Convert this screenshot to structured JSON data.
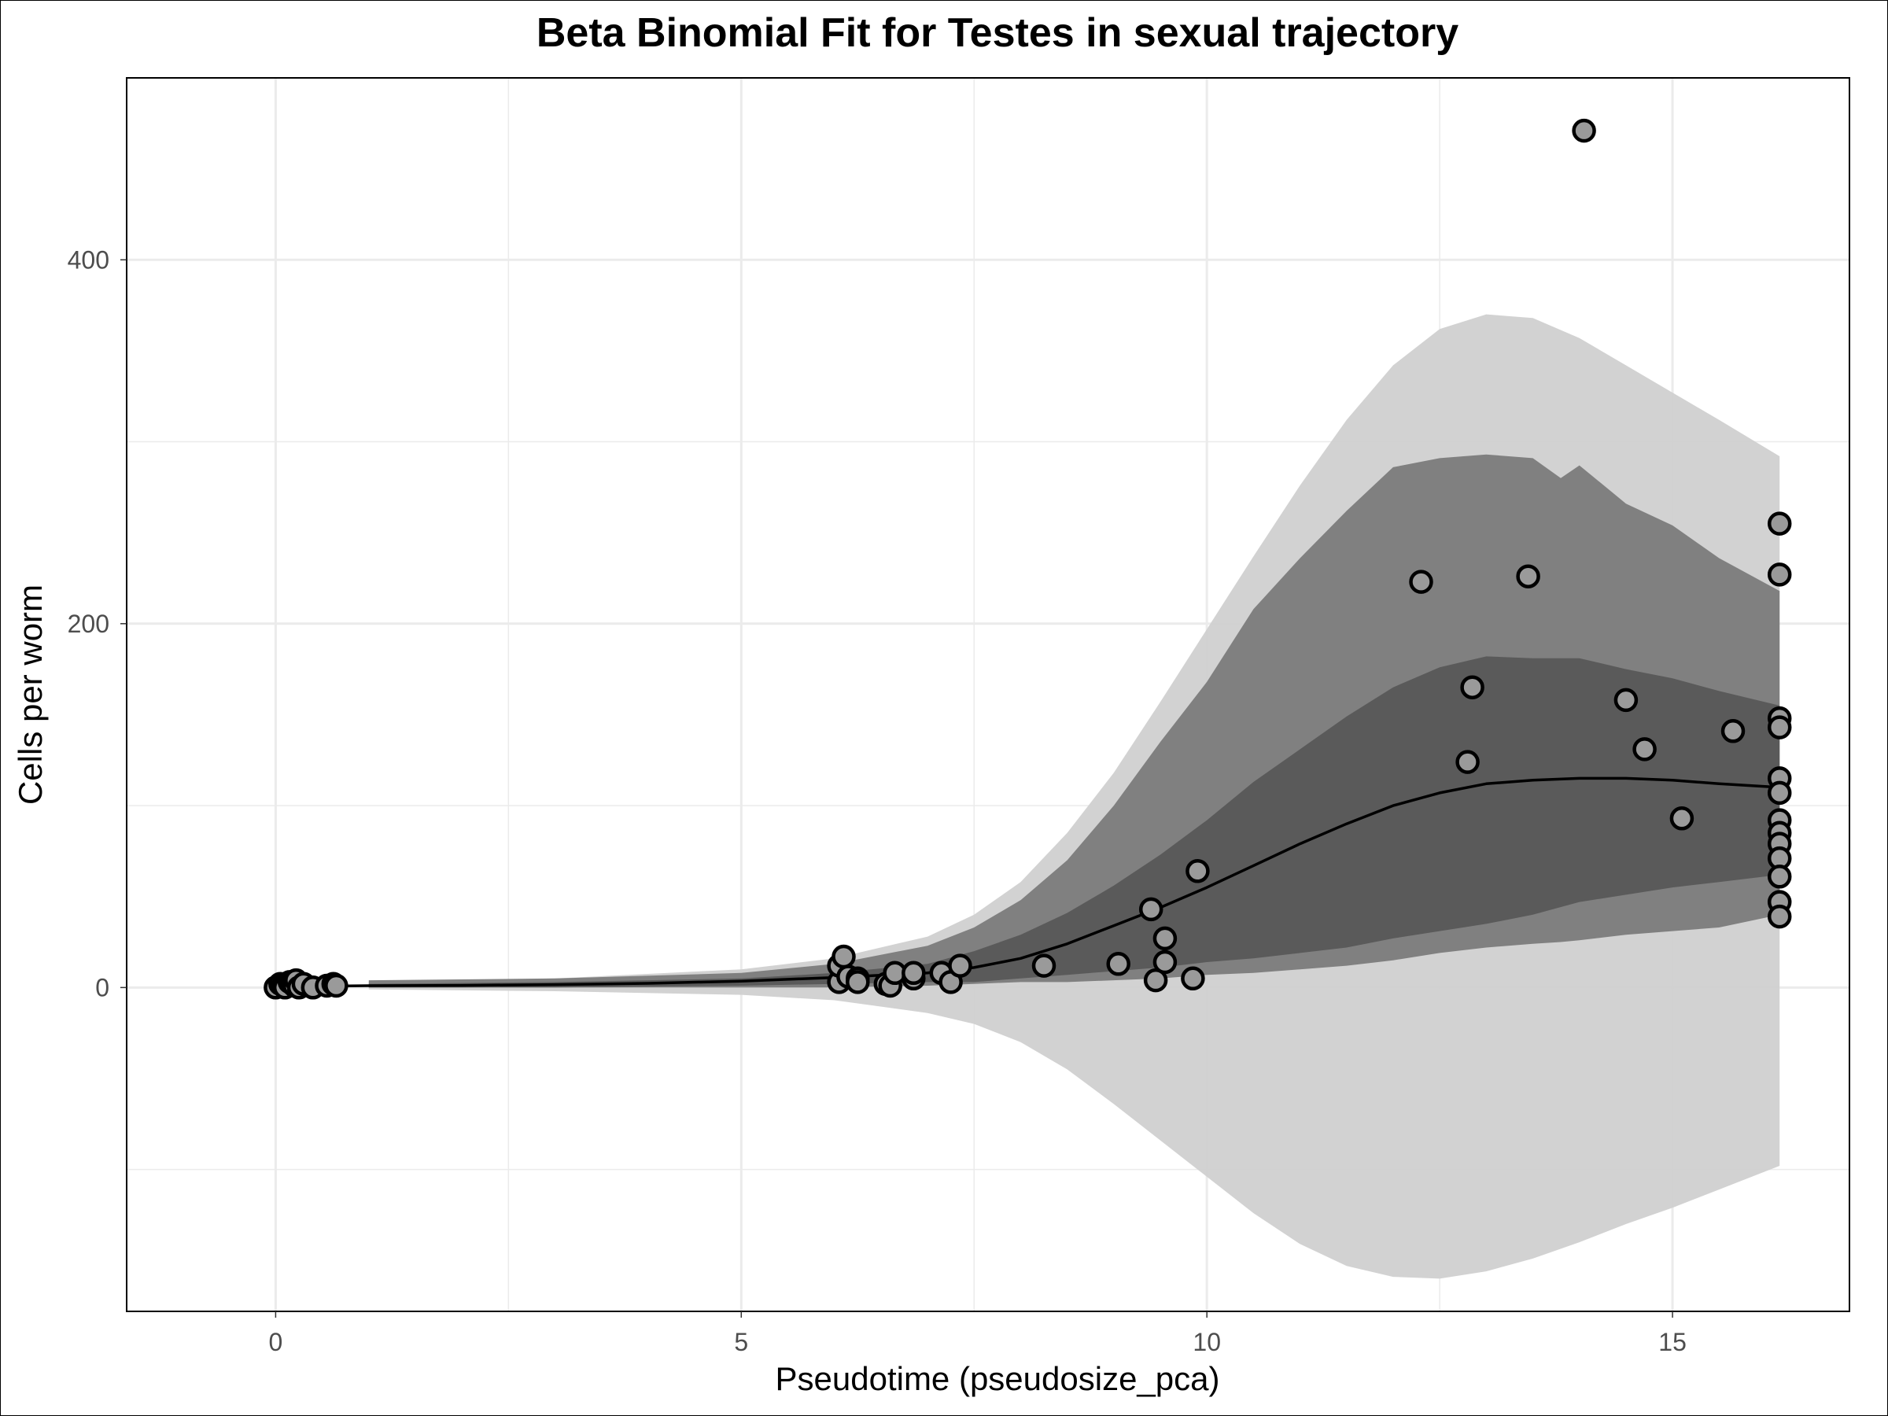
{
  "chart_data": {
    "type": "scatter",
    "title": "Beta Binomial Fit for Testes in sexual trajectory",
    "xlabel": "Pseudotime (pseudosize_pca)",
    "ylabel": "Cells per worm",
    "xlim": [
      -1.6,
      16.9
    ],
    "ylim": [
      -178,
      500
    ],
    "x_ticks": [
      0,
      5,
      10,
      15
    ],
    "y_ticks": [
      0,
      200,
      400
    ],
    "grid": true,
    "legend": "none",
    "colors": {
      "outer_band": "#d0d0d0",
      "middle_band": "#808080",
      "inner_band": "#5a5a5a",
      "fit_line": "#000000",
      "point_fill": "#9a9a9a",
      "point_stroke": "#000000",
      "grid": "#ebebeb"
    },
    "bands": {
      "outer": {
        "x": [
          1.0,
          3,
          5,
          6,
          7,
          7.5,
          8,
          8.5,
          9,
          9.5,
          10,
          10.5,
          11,
          11.5,
          12,
          12.5,
          13,
          13.5,
          14,
          14.5,
          15,
          15.5,
          16.15
        ],
        "upper": [
          3,
          5,
          10,
          16,
          28,
          40,
          58,
          85,
          118,
          157,
          197,
          237,
          276,
          312,
          342,
          362,
          370,
          368,
          357,
          342,
          327,
          312,
          292
        ],
        "lower": [
          -1,
          -2,
          -4,
          -7,
          -14,
          -20,
          -30,
          -45,
          -64,
          -84,
          -104,
          -124,
          -141,
          -153,
          -159,
          -160,
          -156,
          -149,
          -140,
          -130,
          -121,
          -111,
          -98
        ]
      },
      "middle": {
        "x": [
          1.0,
          3,
          5,
          6,
          7,
          7.5,
          8,
          8.5,
          9,
          9.5,
          10,
          10.5,
          11,
          11.5,
          12,
          12.5,
          13,
          13.5,
          13.8,
          14,
          14.5,
          15,
          15.5,
          16.15
        ],
        "upper": [
          4,
          5,
          8,
          13,
          23,
          33,
          48,
          70,
          100,
          135,
          168,
          208,
          236,
          262,
          286,
          291,
          293,
          291,
          280,
          287,
          266,
          254,
          236,
          218
        ],
        "lower": [
          0,
          0,
          0,
          0,
          1,
          2,
          3,
          3,
          4,
          5,
          7,
          8,
          10,
          12,
          15,
          19,
          22,
          24,
          25,
          26,
          29,
          31,
          33,
          40
        ]
      },
      "inner": {
        "x": [
          1.0,
          3,
          5,
          6,
          7,
          7.5,
          8,
          8.5,
          9,
          9.5,
          10,
          10.5,
          11,
          11.5,
          12,
          12.5,
          13,
          13.5,
          14,
          14.5,
          15,
          15.5,
          16.15
        ],
        "upper": [
          2,
          3,
          5,
          8,
          13,
          20,
          29,
          41,
          56,
          73,
          92,
          113,
          131,
          149,
          165,
          176,
          182,
          181,
          181,
          175,
          170,
          163,
          155
        ],
        "lower": [
          0,
          0,
          1,
          2,
          3,
          3,
          5,
          7,
          9,
          11,
          14,
          16,
          19,
          22,
          27,
          31,
          35,
          40,
          47,
          51,
          55,
          58,
          62
        ]
      }
    },
    "fit_line": {
      "x": [
        0,
        1,
        2,
        3,
        4,
        5,
        6,
        7,
        7.5,
        8,
        8.5,
        9,
        9.5,
        10,
        10.5,
        11,
        11.5,
        12,
        12.5,
        13,
        13.5,
        14,
        14.5,
        15,
        15.5,
        16.15
      ],
      "y": [
        0.5,
        1,
        1.2,
        1.6,
        2.3,
        3.5,
        5.5,
        8,
        11,
        16,
        24,
        34,
        44,
        55,
        67,
        79,
        90,
        100,
        107,
        112,
        114,
        115,
        115,
        114,
        112,
        110
      ]
    },
    "points": [
      {
        "x": 0.0,
        "y": 0
      },
      {
        "x": 0.05,
        "y": 2
      },
      {
        "x": 0.08,
        "y": 1
      },
      {
        "x": 0.1,
        "y": 0
      },
      {
        "x": 0.15,
        "y": 3
      },
      {
        "x": 0.18,
        "y": 2
      },
      {
        "x": 0.2,
        "y": 1
      },
      {
        "x": 0.22,
        "y": 4
      },
      {
        "x": 0.25,
        "y": 0
      },
      {
        "x": 0.3,
        "y": 2
      },
      {
        "x": 0.4,
        "y": 0
      },
      {
        "x": 0.55,
        "y": 1
      },
      {
        "x": 0.62,
        "y": 2
      },
      {
        "x": 0.65,
        "y": 1
      },
      {
        "x": 6.05,
        "y": 3
      },
      {
        "x": 6.05,
        "y": 12
      },
      {
        "x": 6.1,
        "y": 17
      },
      {
        "x": 6.15,
        "y": 6
      },
      {
        "x": 6.25,
        "y": 5
      },
      {
        "x": 6.25,
        "y": 3
      },
      {
        "x": 6.55,
        "y": 2
      },
      {
        "x": 6.6,
        "y": 1
      },
      {
        "x": 6.65,
        "y": 8
      },
      {
        "x": 6.85,
        "y": 5
      },
      {
        "x": 6.85,
        "y": 8
      },
      {
        "x": 7.15,
        "y": 8
      },
      {
        "x": 7.25,
        "y": 3
      },
      {
        "x": 7.35,
        "y": 12
      },
      {
        "x": 8.25,
        "y": 12
      },
      {
        "x": 9.05,
        "y": 13
      },
      {
        "x": 9.4,
        "y": 43
      },
      {
        "x": 9.45,
        "y": 4
      },
      {
        "x": 9.55,
        "y": 14
      },
      {
        "x": 9.55,
        "y": 27
      },
      {
        "x": 9.85,
        "y": 5
      },
      {
        "x": 9.9,
        "y": 64
      },
      {
        "x": 12.3,
        "y": 223
      },
      {
        "x": 12.8,
        "y": 124
      },
      {
        "x": 12.85,
        "y": 165
      },
      {
        "x": 13.45,
        "y": 226
      },
      {
        "x": 14.05,
        "y": 471
      },
      {
        "x": 14.5,
        "y": 158
      },
      {
        "x": 14.7,
        "y": 131
      },
      {
        "x": 15.1,
        "y": 93
      },
      {
        "x": 15.65,
        "y": 141
      },
      {
        "x": 16.15,
        "y": 255
      },
      {
        "x": 16.15,
        "y": 227
      },
      {
        "x": 16.15,
        "y": 148
      },
      {
        "x": 16.15,
        "y": 143
      },
      {
        "x": 16.15,
        "y": 115
      },
      {
        "x": 16.15,
        "y": 107
      },
      {
        "x": 16.15,
        "y": 92
      },
      {
        "x": 16.15,
        "y": 85
      },
      {
        "x": 16.15,
        "y": 79
      },
      {
        "x": 16.15,
        "y": 71
      },
      {
        "x": 16.15,
        "y": 61
      },
      {
        "x": 16.15,
        "y": 47
      },
      {
        "x": 16.15,
        "y": 39
      }
    ]
  }
}
